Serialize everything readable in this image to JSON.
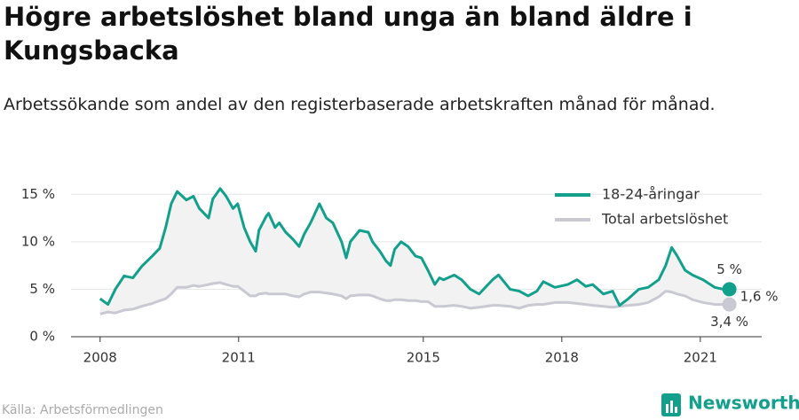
{
  "chart_data": {
    "type": "line",
    "title": "Högre arbetslöshet bland unga än bland äldre i Kungsbacka",
    "subtitle": "Arbetssökande som andel av den registerbaserade arbetskraften månad för månad.",
    "source": "Källa: Arbetsförmedlingen",
    "brand": "Newsworthy",
    "x": [
      2008.0,
      2008.17,
      2008.33,
      2008.52,
      2008.71,
      2008.9,
      2009.13,
      2009.29,
      2009.42,
      2009.54,
      2009.67,
      2009.87,
      2010.02,
      2010.15,
      2010.35,
      2010.44,
      2010.6,
      2010.73,
      2010.88,
      2010.98,
      2011.12,
      2011.25,
      2011.37,
      2011.44,
      2011.6,
      2011.65,
      2011.79,
      2011.88,
      2012.02,
      2012.17,
      2012.31,
      2012.42,
      2012.56,
      2012.75,
      2012.9,
      2013.04,
      2013.23,
      2013.33,
      2013.42,
      2013.62,
      2013.81,
      2013.9,
      2014.06,
      2014.19,
      2014.29,
      2014.38,
      2014.52,
      2014.67,
      2014.83,
      2014.96,
      2015.1,
      2015.25,
      2015.35,
      2015.44,
      2015.67,
      2015.83,
      2016.02,
      2016.21,
      2016.5,
      2016.63,
      2016.88,
      2017.08,
      2017.27,
      2017.46,
      2017.6,
      2017.85,
      2018.13,
      2018.33,
      2018.52,
      2018.67,
      2018.9,
      2019.1,
      2019.25,
      2019.44,
      2019.67,
      2019.87,
      2020.1,
      2020.25,
      2020.38,
      2020.5,
      2020.67,
      2020.83,
      2021.06,
      2021.31,
      2021.5,
      2021.63
    ],
    "series": [
      {
        "name": "18-24-åringar",
        "color": "#12a08c",
        "values": [
          4.0,
          3.4,
          5.0,
          6.4,
          6.2,
          7.4,
          8.5,
          9.3,
          11.5,
          14.0,
          15.3,
          14.4,
          14.8,
          13.5,
          12.5,
          14.5,
          15.6,
          14.8,
          13.5,
          14.0,
          11.5,
          10.0,
          9.0,
          11.2,
          12.7,
          13.0,
          11.5,
          12.0,
          11.0,
          10.3,
          9.5,
          10.8,
          12.0,
          14.0,
          12.5,
          12.0,
          10.0,
          8.3,
          10.0,
          11.2,
          11.0,
          10.0,
          9.0,
          8.0,
          7.5,
          9.2,
          10.0,
          9.5,
          8.5,
          8.3,
          7.0,
          5.5,
          6.2,
          6.0,
          6.5,
          6.0,
          5.0,
          4.5,
          6.0,
          6.5,
          5.0,
          4.8,
          4.3,
          4.8,
          5.8,
          5.2,
          5.5,
          6.0,
          5.3,
          5.5,
          4.5,
          4.8,
          3.3,
          4.0,
          5.0,
          5.2,
          6.0,
          7.5,
          9.4,
          8.5,
          7.0,
          6.5,
          6.0,
          5.2,
          5.0,
          5.0
        ]
      },
      {
        "name": "Total arbetslöshet",
        "color": "#c9c9d3",
        "values": [
          2.4,
          2.6,
          2.5,
          2.8,
          2.9,
          3.2,
          3.5,
          3.8,
          4.0,
          4.5,
          5.2,
          5.2,
          5.4,
          5.3,
          5.5,
          5.6,
          5.7,
          5.5,
          5.3,
          5.3,
          4.8,
          4.3,
          4.3,
          4.5,
          4.6,
          4.5,
          4.5,
          4.5,
          4.5,
          4.3,
          4.2,
          4.5,
          4.7,
          4.7,
          4.6,
          4.5,
          4.3,
          4.0,
          4.3,
          4.4,
          4.4,
          4.3,
          4.0,
          3.8,
          3.8,
          3.9,
          3.9,
          3.8,
          3.8,
          3.7,
          3.7,
          3.2,
          3.2,
          3.2,
          3.3,
          3.2,
          3.0,
          3.1,
          3.3,
          3.3,
          3.2,
          3.0,
          3.3,
          3.4,
          3.4,
          3.6,
          3.6,
          3.5,
          3.4,
          3.3,
          3.2,
          3.1,
          3.2,
          3.3,
          3.4,
          3.6,
          4.2,
          4.8,
          4.7,
          4.5,
          4.3,
          3.9,
          3.6,
          3.4,
          3.4,
          3.4
        ]
      }
    ],
    "annotations": [
      "5 %",
      "1,6 %",
      "3,4 %"
    ],
    "xlim": [
      2007.37,
      2022.33
    ],
    "xticks": [
      2008,
      2011,
      2015,
      2018,
      2021
    ],
    "ylim": [
      0,
      16.8
    ],
    "yticks": [
      {
        "value": 0,
        "label": "0 %"
      },
      {
        "value": 5,
        "label": "5 %"
      },
      {
        "value": 10,
        "label": "10 %"
      },
      {
        "value": 15,
        "label": "15 %"
      }
    ],
    "grid": true,
    "legend": "top-right"
  }
}
